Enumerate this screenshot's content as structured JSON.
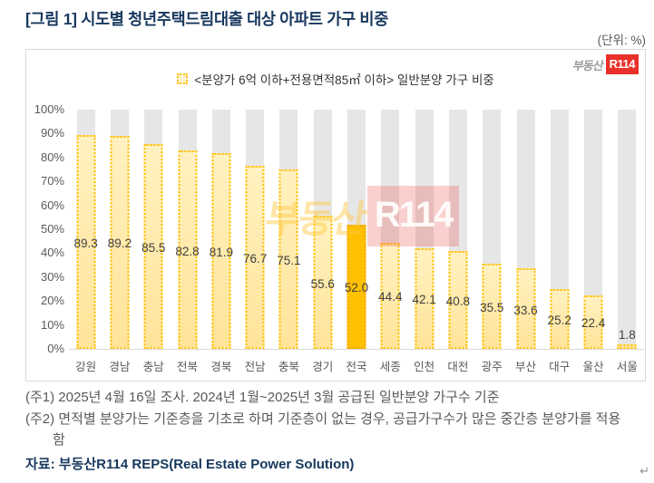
{
  "page": {
    "title": "[그림 1] 시도별 청년주택드림대출 대상 아파트 가구 비중",
    "unit_label": "(단위: %)"
  },
  "brand_logo": {
    "prefix": "부동산",
    "mark": "R114"
  },
  "watermark": {
    "prefix": "부동산",
    "mark": "R114"
  },
  "chart_data": {
    "type": "bar",
    "legend_label": "<분양가 6억 이하+전용면적85㎡ 이하> 일반분양 가구 비중",
    "categories": [
      "강원",
      "경남",
      "충남",
      "전북",
      "경북",
      "전남",
      "충북",
      "경기",
      "전국",
      "세종",
      "인천",
      "대전",
      "광주",
      "부산",
      "대구",
      "울산",
      "서울"
    ],
    "values": [
      89.3,
      89.2,
      85.5,
      82.8,
      81.9,
      76.7,
      75.1,
      55.6,
      52.0,
      44.4,
      42.1,
      40.8,
      35.5,
      33.6,
      25.2,
      22.4,
      1.8
    ],
    "highlight_category": "전국",
    "value_decimals": 1,
    "ylim": [
      0,
      100
    ],
    "yticks": [
      0,
      10,
      20,
      30,
      40,
      50,
      60,
      70,
      80,
      90,
      100
    ],
    "ytick_suffix": "%",
    "legend_position": "top",
    "grid": false,
    "colors": {
      "bar_fill": "#FFE49A",
      "bar_border": "#FFC000",
      "highlight_fill": "#FFC000",
      "track_fill": "#E7E6E6",
      "value_label": "#404040",
      "axis_label": "#595959"
    }
  },
  "footnotes": {
    "note1": "(주1) 2025년 4월 16일 조사. 2024년 1월~2025년 3월 공급된 일반분양 가구수 기준",
    "note2": "(주2) 면적별 분양가는 기준층을 기초로 하며 기준층이 없는 경우, 공급가구수가 많은 중간층 분양가를 적용함",
    "source": "자료: 부동산R114 REPS(Real Estate Power Solution)"
  },
  "misc": {
    "colors": {
      "brand_red": "#E8312A",
      "title_navy": "#17375D"
    },
    "paragraph_mark": "↵"
  }
}
